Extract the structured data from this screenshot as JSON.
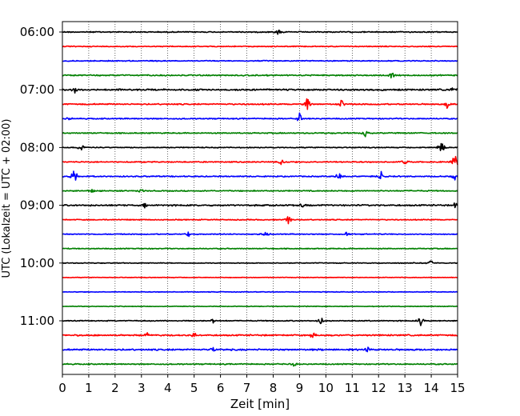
{
  "chart_data": {
    "type": "line",
    "title": "",
    "xlabel": "Zeit  [min]",
    "ylabel": "UTC (Lokalzeit = UTC + 02:00)",
    "xlim": [
      0,
      15
    ],
    "x_ticks": [
      "0",
      "1",
      "2",
      "3",
      "4",
      "5",
      "6",
      "7",
      "8",
      "9",
      "10",
      "11",
      "12",
      "13",
      "14",
      "15"
    ],
    "y_ticks": [
      {
        "label": "06:00",
        "row": 0
      },
      {
        "label": "07:00",
        "row": 4
      },
      {
        "label": "08:00",
        "row": 8
      },
      {
        "label": "09:00",
        "row": 12
      },
      {
        "label": "10:00",
        "row": 16
      },
      {
        "label": "11:00",
        "row": 20
      }
    ],
    "grid": "vertical dotted at each minute",
    "legend": "none",
    "colors": [
      "#000000",
      "#ff0000",
      "#0000ff",
      "#008000"
    ],
    "series": [
      {
        "start": "06:00",
        "color": "#000000",
        "noise": 0.35,
        "events": [
          {
            "t": 8.2,
            "amp": 0.6
          }
        ]
      },
      {
        "start": "06:15",
        "color": "#ff0000",
        "noise": 0.3,
        "events": []
      },
      {
        "start": "06:30",
        "color": "#0000ff",
        "noise": 0.3,
        "events": []
      },
      {
        "start": "06:45",
        "color": "#008000",
        "noise": 0.4,
        "events": [
          {
            "t": 12.5,
            "amp": 0.8
          }
        ]
      },
      {
        "start": "07:00",
        "color": "#000000",
        "noise": 0.5,
        "events": [
          {
            "t": 0.5,
            "amp": 0.8
          },
          {
            "t": 14.8,
            "amp": 0.6
          }
        ]
      },
      {
        "start": "07:15",
        "color": "#ff0000",
        "noise": 0.4,
        "events": [
          {
            "t": 9.3,
            "amp": 1.6
          },
          {
            "t": 10.6,
            "amp": 1.0
          },
          {
            "t": 14.6,
            "amp": 1.0
          }
        ]
      },
      {
        "start": "07:30",
        "color": "#0000ff",
        "noise": 0.35,
        "events": [
          {
            "t": 0.3,
            "amp": 0.8
          },
          {
            "t": 9.0,
            "amp": 1.2
          }
        ]
      },
      {
        "start": "07:45",
        "color": "#008000",
        "noise": 0.35,
        "events": [
          {
            "t": 11.5,
            "amp": 0.8
          }
        ]
      },
      {
        "start": "08:00",
        "color": "#000000",
        "noise": 0.3,
        "events": [
          {
            "t": 0.7,
            "amp": 1.2
          },
          {
            "t": 14.4,
            "amp": 1.6
          }
        ]
      },
      {
        "start": "08:15",
        "color": "#ff0000",
        "noise": 0.35,
        "events": [
          {
            "t": 8.3,
            "amp": 0.8
          },
          {
            "t": 13.0,
            "amp": 0.7
          },
          {
            "t": 14.9,
            "amp": 2.0
          }
        ]
      },
      {
        "start": "08:30",
        "color": "#0000ff",
        "noise": 0.35,
        "events": [
          {
            "t": 0.45,
            "amp": 2.6
          },
          {
            "t": 10.5,
            "amp": 0.9
          },
          {
            "t": 12.1,
            "amp": 1.0
          },
          {
            "t": 14.9,
            "amp": 0.8
          }
        ]
      },
      {
        "start": "08:45",
        "color": "#008000",
        "noise": 0.35,
        "events": [
          {
            "t": 1.1,
            "amp": 0.7
          },
          {
            "t": 3.0,
            "amp": 0.6
          }
        ]
      },
      {
        "start": "09:00",
        "color": "#000000",
        "noise": 0.45,
        "events": [
          {
            "t": 3.1,
            "amp": 0.6
          },
          {
            "t": 9.1,
            "amp": 0.6
          },
          {
            "t": 14.9,
            "amp": 0.6
          }
        ]
      },
      {
        "start": "09:15",
        "color": "#ff0000",
        "noise": 0.3,
        "events": [
          {
            "t": 8.6,
            "amp": 1.2
          }
        ]
      },
      {
        "start": "09:30",
        "color": "#0000ff",
        "noise": 0.3,
        "events": [
          {
            "t": 4.8,
            "amp": 0.6
          },
          {
            "t": 7.7,
            "amp": 0.6
          },
          {
            "t": 10.8,
            "amp": 0.6
          }
        ]
      },
      {
        "start": "09:45",
        "color": "#008000",
        "noise": 0.3,
        "events": []
      },
      {
        "start": "10:00",
        "color": "#000000",
        "noise": 0.25,
        "events": [
          {
            "t": 14.0,
            "amp": 0.6
          }
        ]
      },
      {
        "start": "10:15",
        "color": "#ff0000",
        "noise": 0.2,
        "events": []
      },
      {
        "start": "10:30",
        "color": "#0000ff",
        "noise": 0.2,
        "events": []
      },
      {
        "start": "10:45",
        "color": "#008000",
        "noise": 0.2,
        "events": []
      },
      {
        "start": "11:00",
        "color": "#000000",
        "noise": 0.3,
        "events": [
          {
            "t": 5.7,
            "amp": 0.6
          },
          {
            "t": 9.8,
            "amp": 1.0
          },
          {
            "t": 13.6,
            "amp": 1.1
          }
        ]
      },
      {
        "start": "11:15",
        "color": "#ff0000",
        "noise": 0.45,
        "events": [
          {
            "t": 3.2,
            "amp": 0.8
          },
          {
            "t": 5.0,
            "amp": 1.0
          },
          {
            "t": 9.5,
            "amp": 1.0
          }
        ]
      },
      {
        "start": "11:30",
        "color": "#0000ff",
        "noise": 0.5,
        "events": [
          {
            "t": 5.7,
            "amp": 0.8
          },
          {
            "t": 11.6,
            "amp": 0.8
          }
        ]
      },
      {
        "start": "11:45",
        "color": "#008000",
        "noise": 0.35,
        "events": [
          {
            "t": 8.8,
            "amp": 0.6
          }
        ]
      }
    ]
  }
}
